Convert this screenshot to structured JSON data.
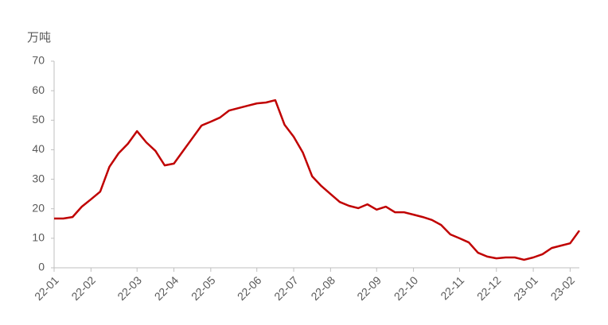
{
  "chart_data": {
    "type": "line",
    "y_label": "万吨",
    "categories": [
      "22-01",
      null,
      null,
      null,
      "22-02",
      null,
      null,
      null,
      null,
      "22-03",
      null,
      null,
      null,
      "22-04",
      null,
      null,
      null,
      "22-05",
      null,
      null,
      null,
      null,
      "22-06",
      null,
      null,
      null,
      "22-07",
      null,
      null,
      null,
      "22-08",
      null,
      null,
      null,
      null,
      "22-09",
      null,
      null,
      null,
      "22-10",
      null,
      null,
      null,
      null,
      "22-11",
      null,
      null,
      null,
      "22-12",
      null,
      null,
      null,
      "23-01",
      null,
      null,
      null,
      "23-02",
      null
    ],
    "series": [
      {
        "name": "万吨",
        "color": "#c00000",
        "values": [
          16.7,
          16.7,
          17.2,
          20.7,
          23.2,
          25.8,
          34.2,
          38.8,
          42,
          46.3,
          42.5,
          39.6,
          34.7,
          35.3,
          39.6,
          43.9,
          48.2,
          49.5,
          50.9,
          53.3,
          54.1,
          54.9,
          55.7,
          56,
          56.8,
          48.5,
          44.4,
          39,
          31,
          27.7,
          25,
          22.3,
          21,
          20.2,
          21.5,
          19.7,
          20.7,
          18.8,
          18.8,
          18,
          17.2,
          16.2,
          14.5,
          11.3,
          10,
          8.6,
          5.1,
          3.8,
          3.2,
          3.5,
          3.5,
          2.7,
          3.5,
          4.6,
          6.7,
          7.5,
          8.3,
          12.6
        ]
      }
    ],
    "ylim": [
      0,
      70
    ],
    "yticks": [
      0,
      10,
      20,
      30,
      40,
      50,
      60,
      70
    ],
    "grid": false
  }
}
